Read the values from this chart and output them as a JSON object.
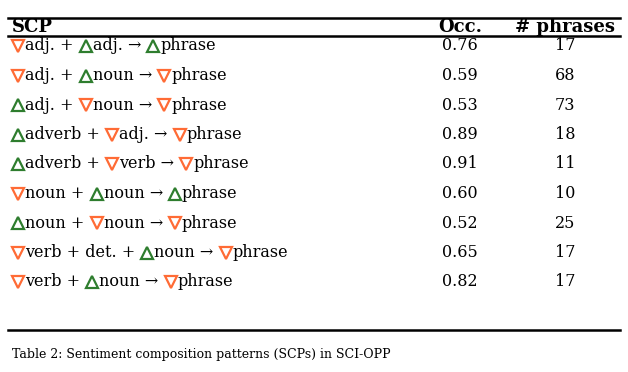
{
  "title_col1": "SCP",
  "title_col2": "Occ.",
  "title_col3": "# phrases",
  "rows": [
    {
      "occ": "0.76",
      "phrases": "17"
    },
    {
      "occ": "0.59",
      "phrases": "68"
    },
    {
      "occ": "0.53",
      "phrases": "73"
    },
    {
      "occ": "0.89",
      "phrases": "18"
    },
    {
      "occ": "0.91",
      "phrases": "11"
    },
    {
      "occ": "0.60",
      "phrases": "10"
    },
    {
      "occ": "0.52",
      "phrases": "25"
    },
    {
      "occ": "0.65",
      "phrases": "17"
    },
    {
      "occ": "0.82",
      "phrases": "17"
    }
  ],
  "neg_color": "#FF6B35",
  "pos_color": "#2E7D2E",
  "bg_color": "#FFFFFF",
  "thick_line": 1.8,
  "thin_line": 0.8,
  "font_size": 11.5,
  "header_font_size": 13,
  "caption": "Table 2: Sentiment composition patterns (SCPs) in SCI-OPP"
}
